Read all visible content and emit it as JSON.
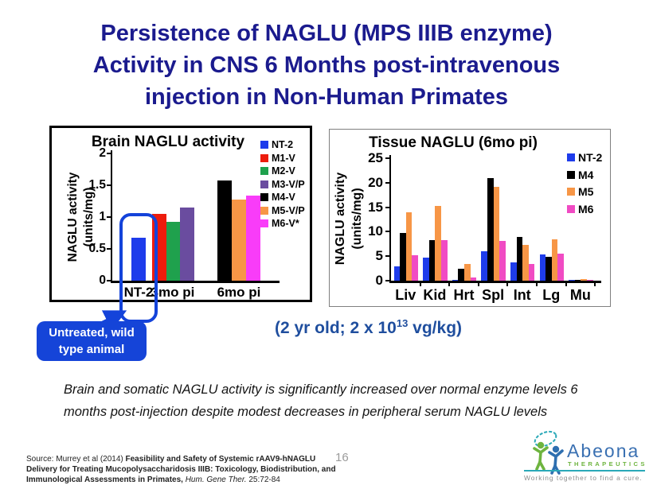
{
  "slide": {
    "title_lines": [
      "Persistence of NAGLU (MPS IIIB enzyme)",
      "Activity in CNS 6 Months post-intravenous",
      "injection in Non-Human Primates"
    ],
    "callout": {
      "line1": "Untreated, wild",
      "line2": "type animal"
    },
    "dose_note": {
      "prefix": "(2 yr old; 2 x 10",
      "superscript": "13",
      "suffix": " vg/kg)"
    },
    "summary": "Brain and somatic NAGLU activity is significantly increased over normal enzyme levels 6 months post-injection despite modest decreases in peripheral serum NAGLU levels",
    "source": {
      "normal_prefix": "Source: Murrey et al (2014) ",
      "bold_title": "Feasibility and Safety of Systemic rAAV9-hNAGLU Delivery for Treating Mucopolysaccharidosis IIIB: Toxicology, Biodistribution, and Immunological Assessments in Primates, ",
      "italic_journal": "Hum. Gene Ther.",
      "normal_suffix": " 25:72-84"
    },
    "page_number": "16",
    "logo": {
      "brand": "Abeona",
      "brand_sub": "THERAPEUTICS",
      "tagline": "Working together to find a cure.",
      "brand_color": "#3A70B2",
      "sub_color": "#6EB43F",
      "line_color": "#2AA9B8",
      "tagline_color": "#8C8C8C",
      "figure_green": "#6EB43F",
      "figure_blue": "#2E6FB0"
    },
    "colors": {
      "title": "#1B1B8E",
      "callout_blue": "#1544D8",
      "dose_blue": "#1F4E9E",
      "highlight_outline": "#1443DA"
    }
  },
  "chart_data": [
    {
      "type": "bar",
      "title": "Brain NAGLU activity",
      "ylabel": "NAGLU activity",
      "ylabel2": "(units/mg)",
      "ylim": [
        0,
        2
      ],
      "yticks": [
        0,
        0.5,
        1,
        1.5,
        2
      ],
      "categories": [
        "NT-2",
        "3mo pi",
        "6mo pi"
      ],
      "legend": [
        {
          "name": "NT-2",
          "color": "#1E3CEB"
        },
        {
          "name": "M1-V",
          "color": "#ED1C0C"
        },
        {
          "name": "M2-V",
          "color": "#1FA14D"
        },
        {
          "name": "M3-V/P",
          "color": "#6A4C9F"
        },
        {
          "name": "M4-V",
          "color": "#000000"
        },
        {
          "name": "M5-V/P",
          "color": "#F79646"
        },
        {
          "name": "M6-V*",
          "color": "#F93CF9"
        }
      ],
      "bars": [
        {
          "category": "NT-2",
          "series": "NT-2",
          "value": 0.68
        },
        {
          "category": "3mo pi",
          "series": "M1-V",
          "value": 1.05
        },
        {
          "category": "3mo pi",
          "series": "M2-V",
          "value": 0.92
        },
        {
          "category": "3mo pi",
          "series": "M3-V/P",
          "value": 1.15
        },
        {
          "category": "6mo pi",
          "series": "M4-V",
          "value": 1.58
        },
        {
          "category": "6mo pi",
          "series": "M5-V/P",
          "value": 1.28
        },
        {
          "category": "6mo pi",
          "series": "M6-V*",
          "value": 1.34
        }
      ],
      "highlight": "NT-2 bar outlined in blue, linked by arrow to 'Untreated, wild type animal' callout",
      "legend_position": "right-inside",
      "grid": false
    },
    {
      "type": "bar",
      "title": "Tissue NAGLU (6mo pi)",
      "ylabel": "NAGLU activity",
      "ylabel2": "(units/mg)",
      "ylim": [
        0,
        25
      ],
      "yticks": [
        0,
        5,
        10,
        15,
        20,
        25
      ],
      "categories": [
        "Liv",
        "Kid",
        "Hrt",
        "Spl",
        "Int",
        "Lg",
        "Mu"
      ],
      "series": [
        {
          "name": "NT-2",
          "color": "#1E3CEB",
          "values": [
            3.0,
            4.7,
            0.2,
            6.0,
            3.7,
            5.3,
            0.1
          ]
        },
        {
          "name": "M4",
          "color": "#000000",
          "values": [
            9.8,
            8.3,
            2.5,
            21.0,
            9.0,
            4.8,
            0.2
          ]
        },
        {
          "name": "M5",
          "color": "#F79646",
          "values": [
            14.0,
            15.3,
            3.4,
            19.2,
            7.3,
            8.4,
            0.3
          ]
        },
        {
          "name": "M6",
          "color": "#F04BC3",
          "values": [
            5.2,
            8.2,
            0.7,
            8.1,
            3.4,
            5.5,
            0.2
          ]
        }
      ],
      "legend_position": "top-right-inside",
      "grid": false
    }
  ]
}
